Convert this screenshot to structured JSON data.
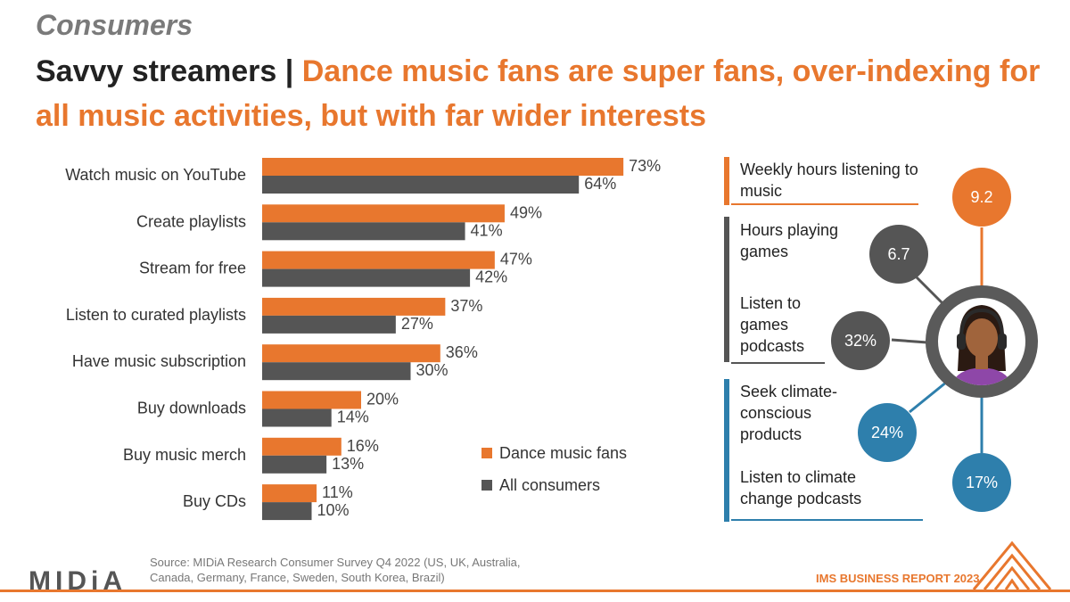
{
  "kicker": "Consumers",
  "headline": {
    "prefix": "Savvy streamers | ",
    "accent": "Dance music fans are super fans, over-indexing for all music activities, but with far wider interests"
  },
  "chart_data": {
    "type": "bar",
    "orientation": "horizontal",
    "categories": [
      "Watch music on YouTube",
      "Create playlists",
      "Stream for free",
      "Listen to curated playlists",
      "Have music subscription",
      "Buy downloads",
      "Buy music merch",
      "Buy CDs"
    ],
    "series": [
      {
        "name": "Dance music fans",
        "color": "#e8772e",
        "values": [
          73,
          49,
          47,
          37,
          36,
          20,
          16,
          11
        ]
      },
      {
        "name": "All consumers",
        "color": "#555555",
        "values": [
          64,
          41,
          42,
          27,
          30,
          14,
          13,
          10
        ]
      }
    ],
    "value_suffix": "%",
    "legend_position": "bottom-right"
  },
  "stats": [
    {
      "label": "Weekly hours listening to music",
      "value": "9.2",
      "color": "#e8772e"
    },
    {
      "label": "Hours playing games",
      "value": "6.7",
      "color": "#555555"
    },
    {
      "label": "Listen to games podcasts",
      "value": "32%",
      "color": "#555555"
    },
    {
      "label": "Seek climate-conscious products",
      "value": "24%",
      "color": "#2e7fac"
    },
    {
      "label": "Listen to climate change podcasts",
      "value": "17%",
      "color": "#2e7fac"
    }
  ],
  "footer": {
    "source": "Source: MIDiA Research Consumer Survey Q4 2022 (US, UK, Australia, Canada, Germany, France, Sweden, South Korea, Brazil)",
    "report": "IMS BUSINESS REPORT 2023",
    "brand": "MIDiA"
  }
}
